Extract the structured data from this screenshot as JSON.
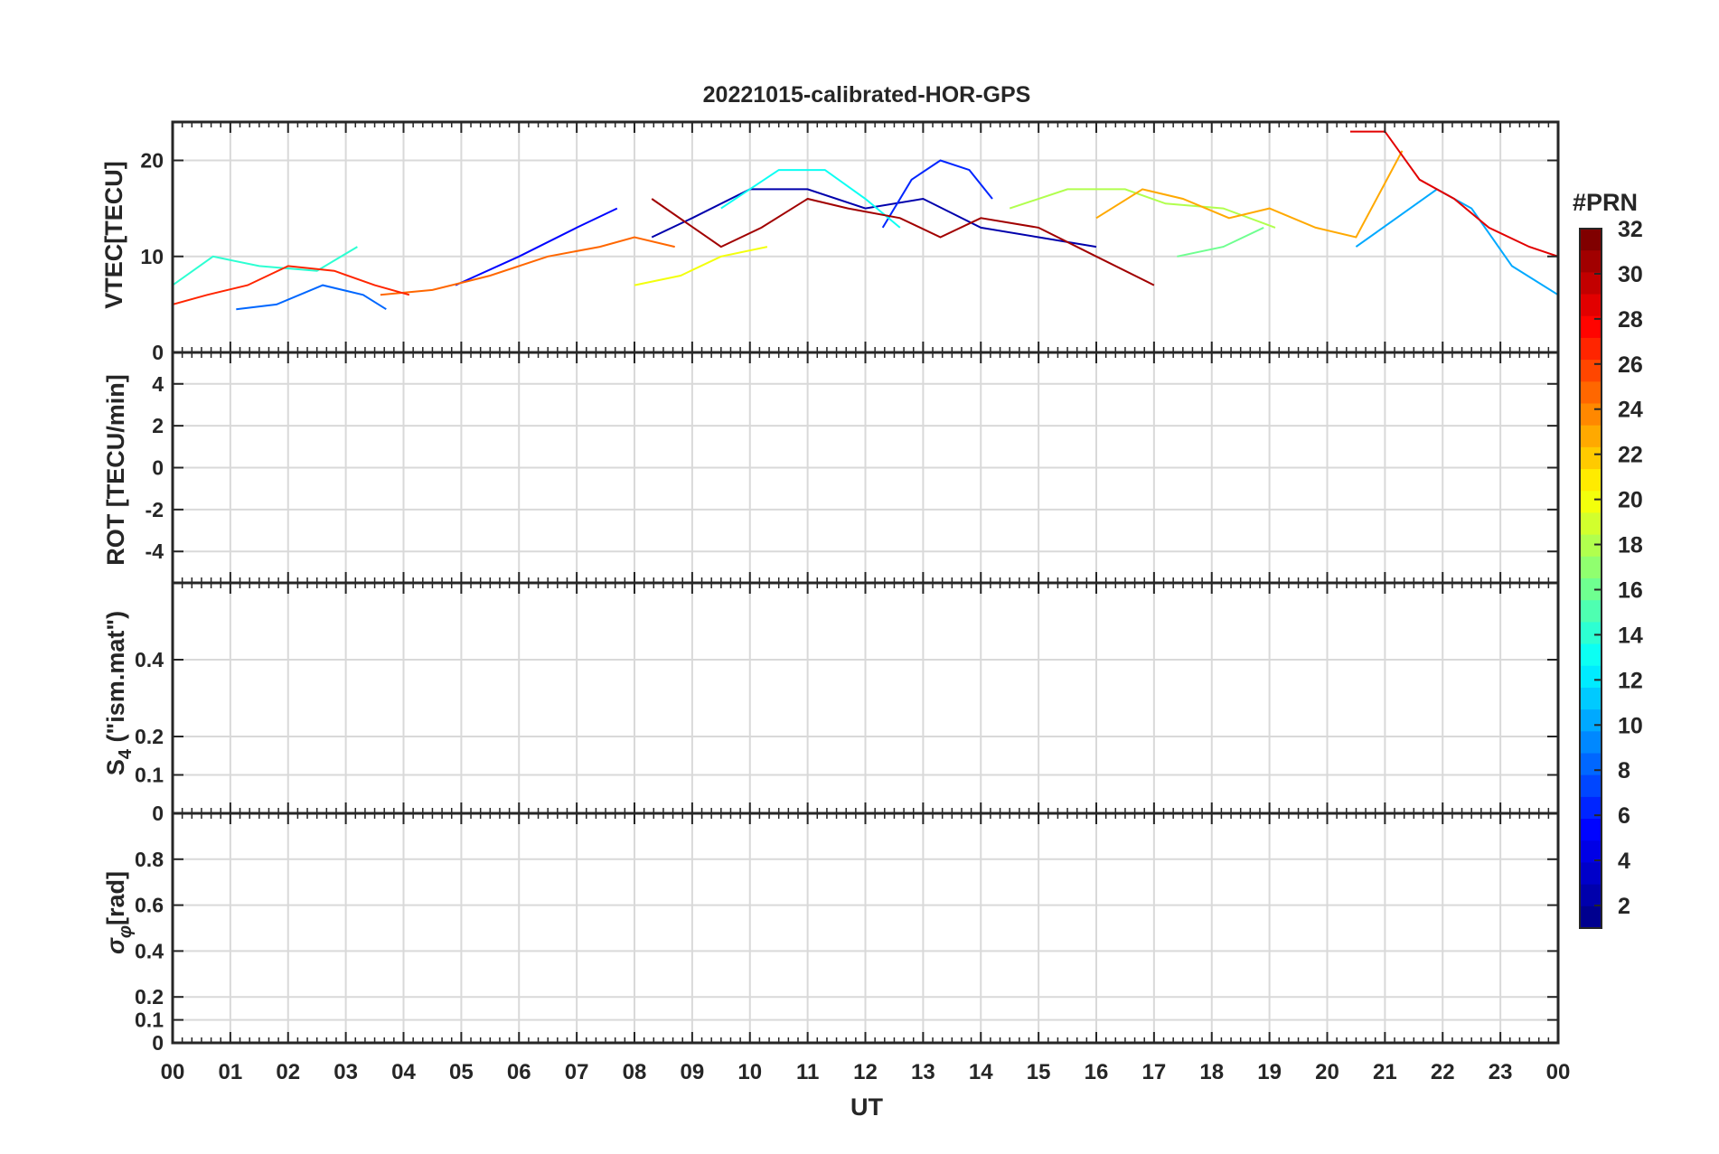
{
  "chart_data": {
    "type": "line",
    "title": "20221015-calibrated-HOR-GPS",
    "xlabel": "UT",
    "x_tick_labels": [
      "00",
      "01",
      "02",
      "03",
      "04",
      "05",
      "06",
      "07",
      "08",
      "09",
      "10",
      "11",
      "12",
      "13",
      "14",
      "15",
      "16",
      "17",
      "18",
      "19",
      "20",
      "21",
      "22",
      "23",
      "00"
    ],
    "xlim": [
      0,
      24
    ],
    "grid": true,
    "colorbar": {
      "label": "#PRN",
      "range": [
        1,
        32
      ],
      "ticks": [
        2,
        4,
        6,
        8,
        10,
        12,
        14,
        16,
        18,
        20,
        22,
        24,
        26,
        28,
        30,
        32
      ],
      "colormap": [
        "#00008F",
        "#0000FF",
        "#0080FF",
        "#00FFFF",
        "#80FF80",
        "#FFFF00",
        "#FF8000",
        "#FF0000",
        "#800000"
      ]
    },
    "panels": [
      {
        "ylabel": "VTEC[TECU]",
        "ylim": [
          0,
          24
        ],
        "yticks": [
          0,
          10,
          20
        ],
        "series": [
          {
            "prn": 2,
            "x": [
              8.3,
              9,
              10,
              11,
              12,
              13,
              14,
              15,
              16
            ],
            "y": [
              12,
              14,
              17,
              17,
              15,
              16,
              13,
              12,
              11
            ]
          },
          {
            "prn": 5,
            "x": [
              4.9,
              6,
              7,
              7.7
            ],
            "y": [
              7,
              10,
              13,
              15
            ]
          },
          {
            "prn": 6,
            "x": [
              12.3,
              12.8,
              13.3,
              13.8,
              14.2
            ],
            "y": [
              13,
              18,
              20,
              19,
              16
            ]
          },
          {
            "prn": 8,
            "x": [
              1.1,
              1.8,
              2.6,
              3.3,
              3.7
            ],
            "y": [
              4.5,
              5,
              7,
              6,
              4.5
            ]
          },
          {
            "prn": 10,
            "x": [
              20.5,
              21.2,
              21.9,
              22.5,
              23.2,
              24
            ],
            "y": [
              11,
              14,
              17,
              15,
              9,
              6
            ]
          },
          {
            "prn": 13,
            "x": [
              9.5,
              10.5,
              11.3,
              12,
              12.6
            ],
            "y": [
              15,
              19,
              19,
              16,
              13
            ]
          },
          {
            "prn": 14,
            "x": [
              0,
              0.7,
              1.5,
              2.5,
              3.2
            ],
            "y": [
              7,
              10,
              9,
              8.5,
              11
            ]
          },
          {
            "prn": 16,
            "x": [
              17.4,
              18.2,
              18.9
            ],
            "y": [
              10,
              11,
              13
            ]
          },
          {
            "prn": 18,
            "x": [
              14.5,
              15.5,
              16.5,
              17.2,
              18.2,
              19.1
            ],
            "y": [
              15,
              17,
              17,
              15.5,
              15,
              13
            ]
          },
          {
            "prn": 20,
            "x": [
              8,
              8.8,
              9.5,
              10.3
            ],
            "y": [
              7,
              8,
              10,
              11
            ]
          },
          {
            "prn": 23,
            "x": [
              16,
              16.8,
              17.5,
              18.3,
              19,
              19.8,
              20.5,
              21.3
            ],
            "y": [
              14,
              17,
              16,
              14,
              15,
              13,
              12,
              21
            ]
          },
          {
            "prn": 25,
            "x": [
              3.6,
              4.5,
              5.5,
              6.5,
              7.4,
              8,
              8.7
            ],
            "y": [
              6,
              6.5,
              8,
              10,
              11,
              12,
              11
            ]
          },
          {
            "prn": 27,
            "x": [
              0,
              0.6,
              1.3,
              2,
              2.8,
              3.5,
              4.1
            ],
            "y": [
              5,
              6,
              7,
              9,
              8.5,
              7,
              6
            ]
          },
          {
            "prn": 29,
            "x": [
              20.4,
              21,
              21.6,
              22.2,
              22.8,
              23.5,
              24
            ],
            "y": [
              23,
              23,
              18,
              16,
              13,
              11,
              10
            ]
          },
          {
            "prn": 31,
            "x": [
              8.3,
              9.5,
              10.2,
              11,
              11.7,
              12.6,
              13.3,
              14,
              15,
              16,
              17
            ],
            "y": [
              16,
              11,
              13,
              16,
              15,
              14,
              12,
              14,
              13,
              10,
              7
            ]
          }
        ]
      },
      {
        "ylabel": "ROT [TECU/min]",
        "ylim": [
          -5.5,
          5.5
        ],
        "yticks": [
          -4,
          -2,
          0,
          2,
          4
        ],
        "series": []
      },
      {
        "ylabel": "S4 (\"ism.mat\")",
        "ylim": [
          0,
          0.6
        ],
        "yticks": [
          0,
          0.1,
          0.2,
          0.4
        ],
        "series": []
      },
      {
        "ylabel": "σφ [rad]",
        "ylim": [
          0,
          1
        ],
        "yticks": [
          0,
          0.1,
          0.2,
          0.4,
          0.6,
          0.8
        ],
        "series": []
      }
    ]
  },
  "labels": {
    "vtec_ylabel": "VTEC[TECU]",
    "rot_ylabel": "ROT [TECU/min]",
    "s4_main": "S",
    "s4_sub": "4",
    "s4_rest": " (\"ism.mat\")",
    "sigma_main": "σ",
    "sigma_sub": "φ",
    "sigma_rest": "[rad]"
  }
}
